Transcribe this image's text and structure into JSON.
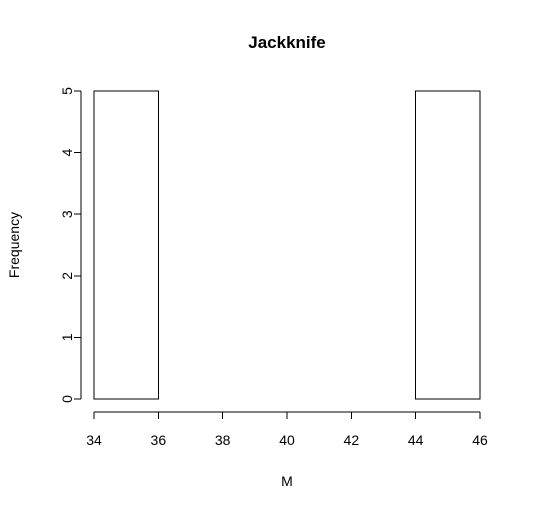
{
  "chart_data": {
    "type": "bar",
    "subtype": "histogram",
    "title": "Jackknife",
    "xlabel": "M",
    "ylabel": "Frequency",
    "bins": [
      {
        "from": 34,
        "to": 36,
        "count": 5
      },
      {
        "from": 36,
        "to": 38,
        "count": 0
      },
      {
        "from": 38,
        "to": 40,
        "count": 0
      },
      {
        "from": 40,
        "to": 42,
        "count": 0
      },
      {
        "from": 42,
        "to": 44,
        "count": 0
      },
      {
        "from": 44,
        "to": 46,
        "count": 5
      }
    ],
    "xlim": [
      34,
      46
    ],
    "ylim": [
      0,
      5
    ],
    "xticks": [
      "34",
      "36",
      "38",
      "40",
      "42",
      "44",
      "46"
    ],
    "yticks": [
      "0",
      "1",
      "2",
      "3",
      "4",
      "5"
    ],
    "grid": false,
    "bar_fill": "#ffffff",
    "bar_stroke": "#000000"
  }
}
